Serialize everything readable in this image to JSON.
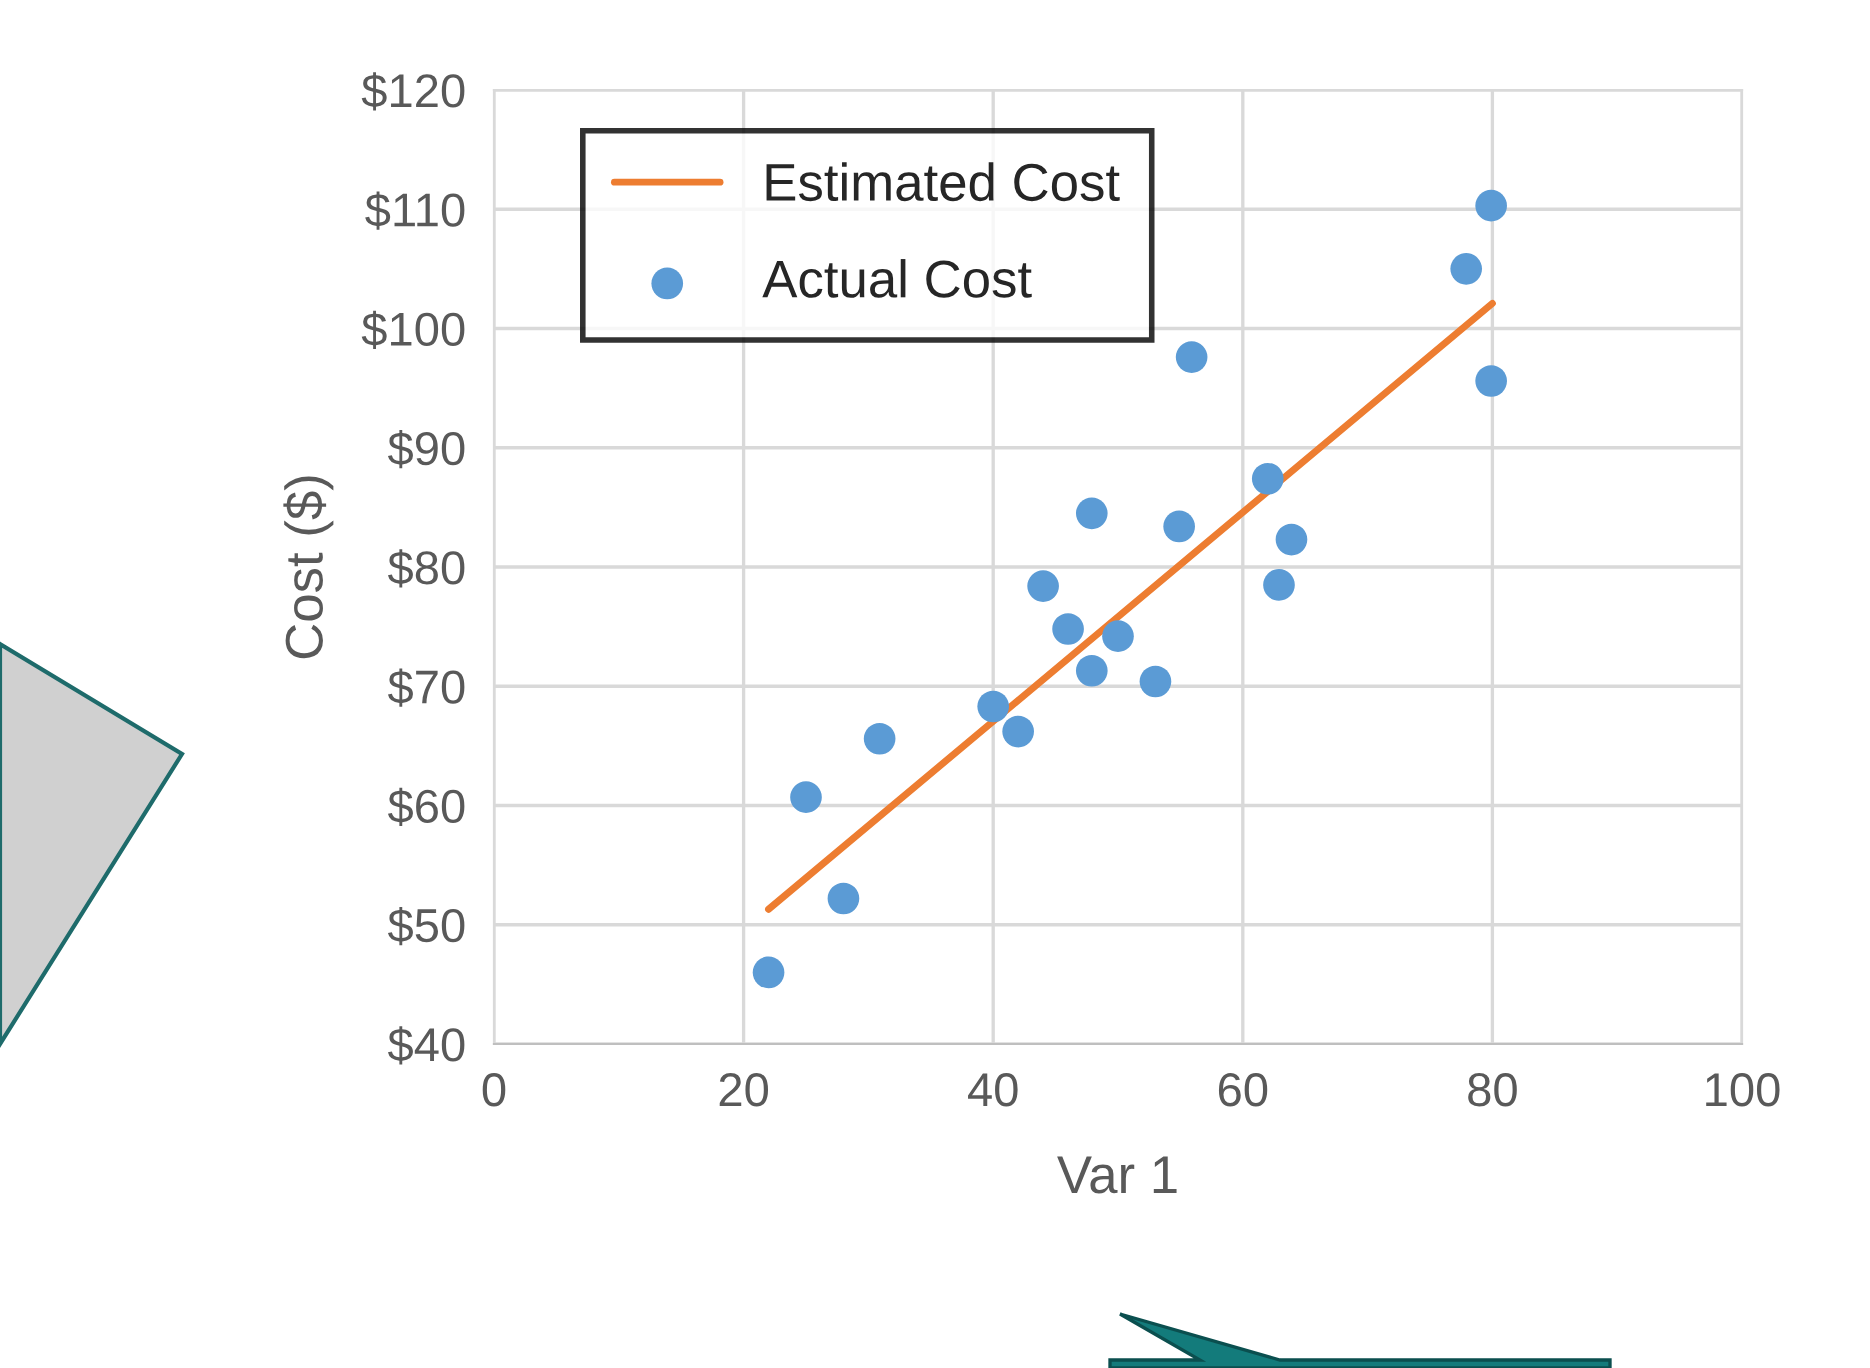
{
  "chart_data": {
    "type": "scatter",
    "xlabel": "Var 1",
    "ylabel": "Cost ($)",
    "xlim": [
      0,
      100
    ],
    "xticks": [
      0,
      20,
      40,
      60,
      80,
      100
    ],
    "ylim": [
      40,
      120
    ],
    "yticks": [
      {
        "value": 40,
        "label": "$40"
      },
      {
        "value": 50,
        "label": "$50"
      },
      {
        "value": 60,
        "label": "$60"
      },
      {
        "value": 70,
        "label": "$70"
      },
      {
        "value": 80,
        "label": "$80"
      },
      {
        "value": 90,
        "label": "$90"
      },
      {
        "value": 100,
        "label": "$100"
      },
      {
        "value": 110,
        "label": "$110"
      },
      {
        "value": 120,
        "label": "$120"
      }
    ],
    "grid": true,
    "legend": "top left",
    "series": [
      {
        "name": "Estimated Cost",
        "type": "line",
        "color": "#ed7d31",
        "marker": "none",
        "line_style": "solid",
        "x": [
          22,
          80
        ],
        "values": [
          51.3,
          102.1
        ]
      },
      {
        "name": "Actual Cost",
        "color": "#5b9bd5",
        "marker": "circle",
        "x": [
          22,
          25,
          28,
          30.9,
          40,
          42,
          44,
          46,
          47.9,
          47.9,
          50,
          53,
          54.9,
          55.9,
          62,
          62.9,
          63.9,
          77.9,
          79.9,
          79.9
        ],
        "values": [
          46.0,
          60.7,
          52.2,
          65.6,
          68.3,
          66.2,
          78.4,
          74.8,
          84.5,
          71.3,
          74.2,
          70.4,
          83.4,
          97.6,
          87.4,
          78.5,
          82.3,
          105.0,
          110.3,
          95.6
        ]
      }
    ]
  }
}
